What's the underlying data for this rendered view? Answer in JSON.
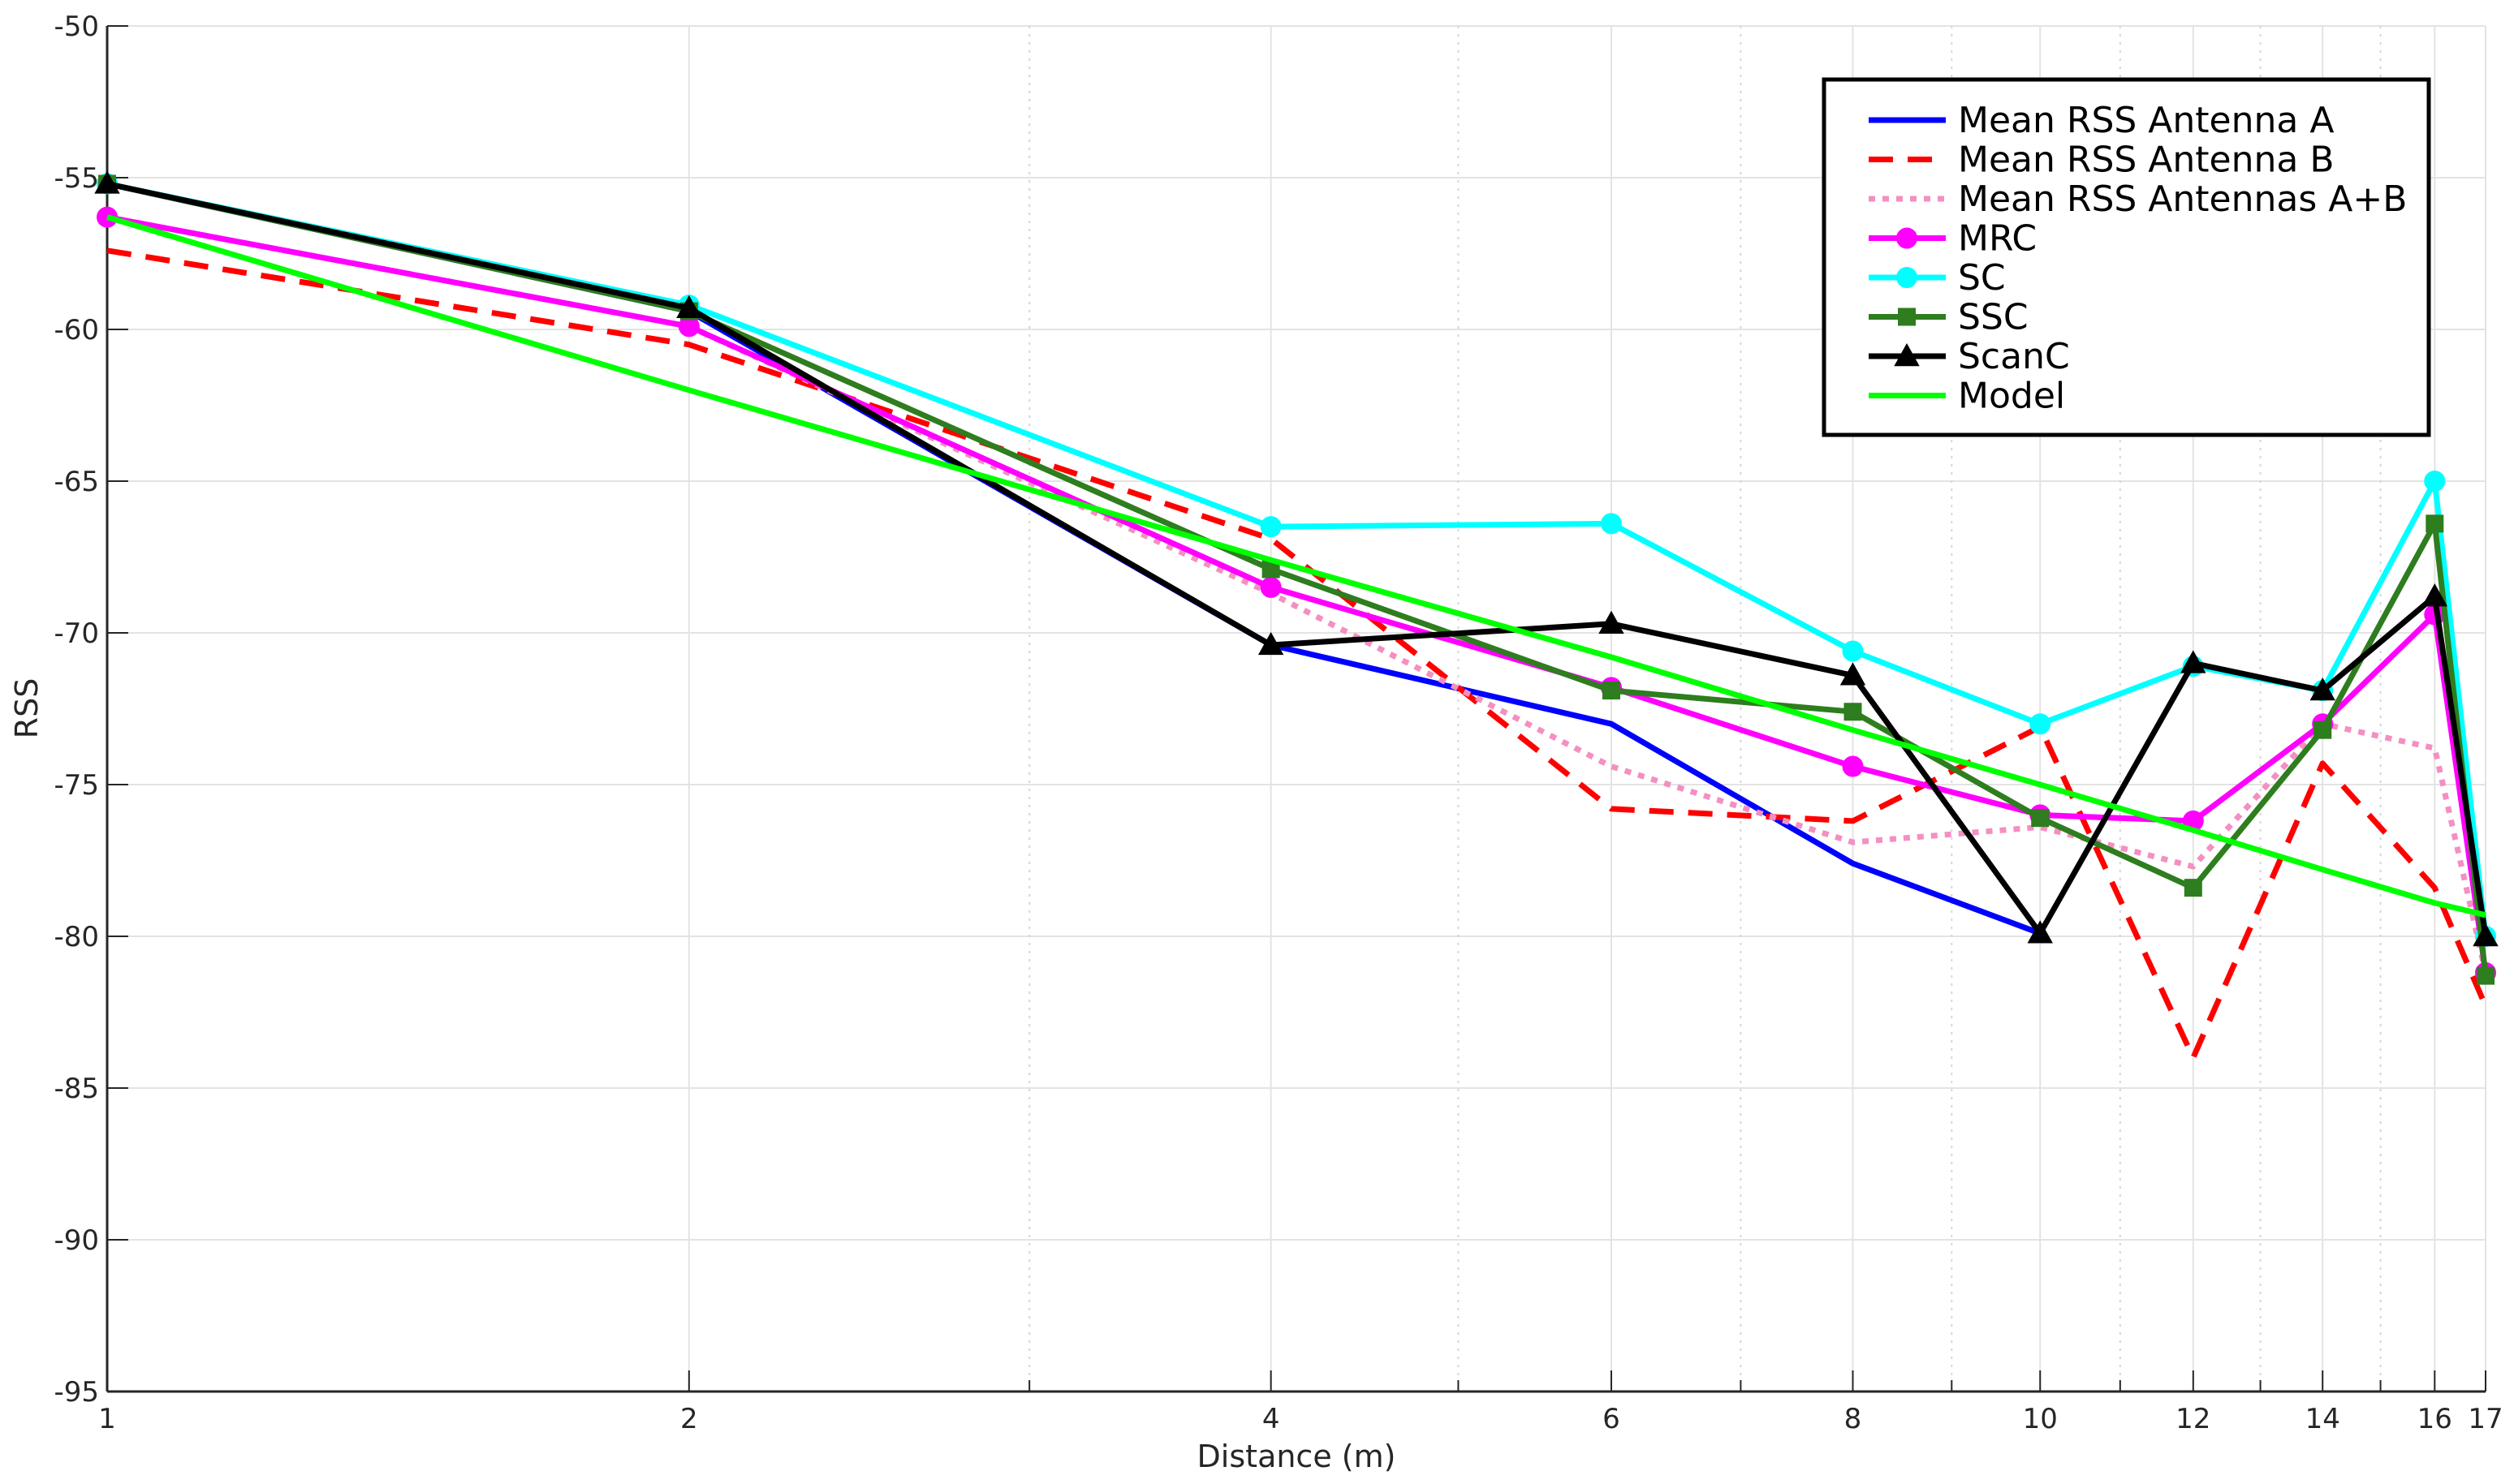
{
  "chart_data": {
    "type": "line",
    "xlabel": "Distance (m)",
    "ylabel": "RSS",
    "x_scale": "log",
    "xlim": [
      1,
      17
    ],
    "ylim": [
      -95,
      -50
    ],
    "x_ticks": [
      1,
      2,
      4,
      6,
      8,
      10,
      12,
      14,
      16,
      17
    ],
    "x_tick_labels": [
      "1",
      "2",
      "4",
      "6",
      "8",
      "10",
      "12",
      "14",
      "16",
      "17"
    ],
    "y_ticks": [
      -95,
      -90,
      -85,
      -80,
      -75,
      -70,
      -65,
      -60,
      -55,
      -50
    ],
    "y_tick_labels": [
      "-95",
      "-90",
      "-85",
      "-80",
      "-75",
      "-70",
      "-65",
      "-60",
      "-55",
      "-50"
    ],
    "grid": true,
    "legend_position": "top-right",
    "series": [
      {
        "name": "Mean RSS Antenna A",
        "color": "#0000ff",
        "dash": "solid",
        "marker": "none",
        "x": [
          1,
          2,
          4,
          6,
          8,
          10
        ],
        "y": [
          -55.2,
          -59.4,
          -70.4,
          -73.0,
          -77.6,
          -79.9
        ]
      },
      {
        "name": "Mean RSS Antenna B",
        "color": "#ff0000",
        "dash": "dashed",
        "marker": "none",
        "x": [
          1,
          2,
          4,
          6,
          8,
          10,
          12,
          14,
          16,
          17
        ],
        "y": [
          -57.4,
          -60.5,
          -66.9,
          -75.8,
          -76.2,
          -73.1,
          -84.0,
          -74.3,
          -78.4,
          -82.3
        ]
      },
      {
        "name": "Mean RSS Antennas A+B",
        "color": "#f48fc2",
        "dash": "dotted",
        "marker": "none",
        "x": [
          1,
          2,
          4,
          6,
          8,
          10,
          12,
          14,
          16,
          17
        ],
        "y": [
          -56.3,
          -59.9,
          -68.7,
          -74.4,
          -76.9,
          -76.4,
          -77.7,
          -73.0,
          -73.8,
          -81.2
        ]
      },
      {
        "name": "MRC",
        "color": "#ff00ff",
        "dash": "solid",
        "marker": "circle",
        "x": [
          1,
          2,
          4,
          6,
          8,
          10,
          12,
          14,
          16,
          17
        ],
        "y": [
          -56.3,
          -59.9,
          -68.5,
          -71.8,
          -74.4,
          -76.0,
          -76.2,
          -73.0,
          -69.4,
          -81.2
        ]
      },
      {
        "name": "SC",
        "color": "#00ffff",
        "dash": "solid",
        "marker": "circle",
        "x": [
          1,
          2,
          4,
          6,
          8,
          10,
          12,
          14,
          16,
          17
        ],
        "y": [
          -55.2,
          -59.2,
          -66.5,
          -66.4,
          -70.6,
          -73.0,
          -71.1,
          -71.9,
          -65.0,
          -80.0
        ]
      },
      {
        "name": "SSC",
        "color": "#2e7d1e",
        "dash": "solid",
        "marker": "square",
        "x": [
          1,
          2,
          4,
          6,
          8,
          10,
          12,
          14,
          16,
          17
        ],
        "y": [
          -55.2,
          -59.4,
          -67.9,
          -71.9,
          -72.6,
          -76.1,
          -78.4,
          -73.2,
          -66.4,
          -81.3
        ]
      },
      {
        "name": "ScanC",
        "color": "#000000",
        "dash": "solid",
        "marker": "triangle",
        "x": [
          1,
          2,
          4,
          6,
          8,
          10,
          12,
          14,
          16,
          17
        ],
        "y": [
          -55.2,
          -59.3,
          -70.4,
          -69.7,
          -71.4,
          -79.9,
          -71.0,
          -71.9,
          -68.8,
          -80.0
        ]
      },
      {
        "name": "Model",
        "color": "#00ff00",
        "dash": "solid",
        "marker": "none",
        "x": [
          1,
          2,
          4,
          6,
          8,
          10,
          12,
          14,
          16,
          17
        ],
        "y": [
          -56.3,
          -62.0,
          -67.6,
          -70.8,
          -73.2,
          -75.0,
          -76.5,
          -77.8,
          -78.9,
          -79.3
        ]
      }
    ]
  }
}
